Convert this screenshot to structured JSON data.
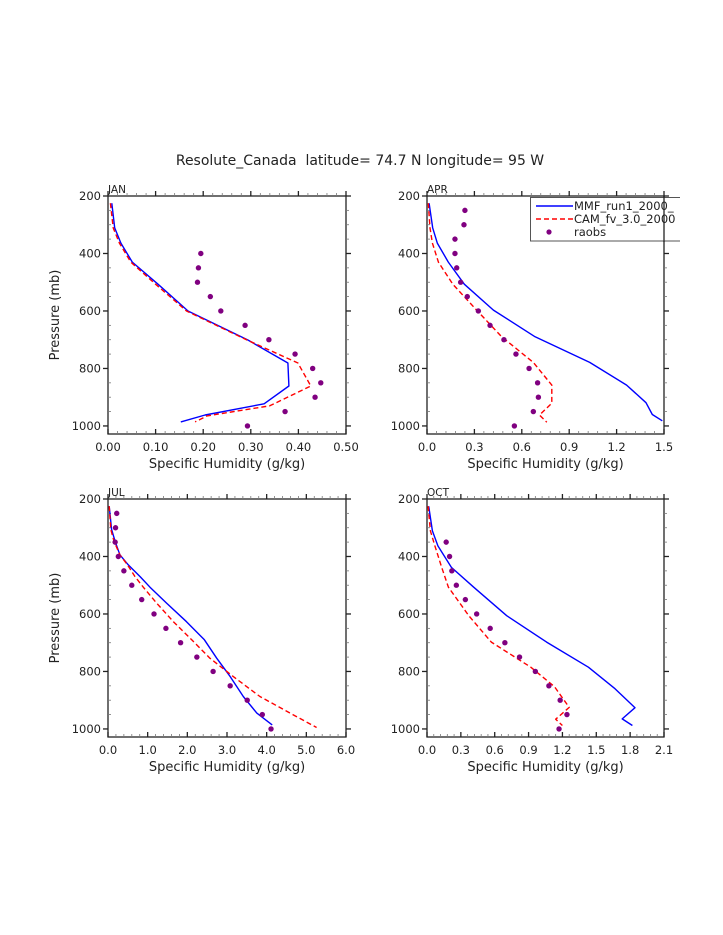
{
  "figure": {
    "title": "Resolute_Canada  latitude= 74.7 N longitude= 95 W"
  },
  "legend": {
    "placement": "top-right of APR panel",
    "entries": [
      {
        "label": "MMF_run1_2000_",
        "style": "solid line",
        "color": "#0000ff"
      },
      {
        "label": "CAM_fv_3.0_2000",
        "style": "dashed line",
        "color": "#ff0000"
      },
      {
        "label": "raobs",
        "style": "marker",
        "color": "#800080"
      }
    ]
  },
  "chart_data": [
    {
      "type": "line",
      "panel": "JAN",
      "title": "JAN",
      "xlabel": "Specific Humidity (g/kg)",
      "ylabel": "Pressure (mb)",
      "xlim": [
        0,
        0.5
      ],
      "ylim": [
        200,
        1028
      ],
      "y_inverted": true,
      "xticks": [
        "0.00",
        "0.10",
        "0.20",
        "0.30",
        "0.40",
        "0.50"
      ],
      "xtick_values": [
        0,
        0.1,
        0.2,
        0.3,
        0.4,
        0.5
      ],
      "yticks": [
        "200",
        "400",
        "600",
        "800",
        "1000"
      ],
      "ytick_values": [
        200,
        400,
        600,
        800,
        1000
      ],
      "series": [
        {
          "name": "MMF_run1_2000_",
          "kind": "line",
          "color": "#0000ff",
          "points": [
            [
              0.008,
              225
            ],
            [
              0.014,
              311
            ],
            [
              0.027,
              364
            ],
            [
              0.051,
              430
            ],
            [
              0.105,
              507
            ],
            [
              0.168,
              600
            ],
            [
              0.294,
              701
            ],
            [
              0.378,
              781
            ],
            [
              0.38,
              861
            ],
            [
              0.328,
              923
            ],
            [
              0.204,
              962
            ],
            [
              0.153,
              986
            ]
          ]
        },
        {
          "name": "CAM_fv_3.0_2000",
          "kind": "dashed",
          "color": "#ff0000",
          "points": [
            [
              0.005,
              225
            ],
            [
              0.011,
              311
            ],
            [
              0.024,
              364
            ],
            [
              0.048,
              430
            ],
            [
              0.1,
              507
            ],
            [
              0.165,
              600
            ],
            [
              0.292,
              701
            ],
            [
              0.399,
              781
            ],
            [
              0.426,
              861
            ],
            [
              0.34,
              930
            ],
            [
              0.208,
              965
            ],
            [
              0.183,
              986
            ]
          ]
        },
        {
          "name": "raobs",
          "kind": "marker",
          "color": "#800080",
          "points": [
            [
              0.195,
              400
            ],
            [
              0.19,
              450
            ],
            [
              0.188,
              500
            ],
            [
              0.215,
              550
            ],
            [
              0.237,
              600
            ],
            [
              0.288,
              650
            ],
            [
              0.338,
              700
            ],
            [
              0.393,
              750
            ],
            [
              0.43,
              800
            ],
            [
              0.447,
              850
            ],
            [
              0.435,
              900
            ],
            [
              0.372,
              950
            ],
            [
              0.293,
              1000
            ]
          ]
        }
      ]
    },
    {
      "type": "line",
      "panel": "APR",
      "title": "APR",
      "xlabel": "Specific Humidity (g/kg)",
      "ylabel": "",
      "xlim": [
        0,
        1.5
      ],
      "ylim": [
        200,
        1028
      ],
      "y_inverted": true,
      "xticks": [
        "0.0",
        "0.3",
        "0.6",
        "0.9",
        "1.2",
        "1.5"
      ],
      "xtick_values": [
        0,
        0.3,
        0.6,
        0.9,
        1.2,
        1.5
      ],
      "yticks": [
        "200",
        "400",
        "600",
        "800",
        "1000"
      ],
      "ytick_values": [
        200,
        400,
        600,
        800,
        1000
      ],
      "series": [
        {
          "name": "MMF_run1_2000_",
          "kind": "line",
          "color": "#0000ff",
          "points": [
            [
              0.013,
              225
            ],
            [
              0.036,
              311
            ],
            [
              0.065,
              364
            ],
            [
              0.135,
              430
            ],
            [
              0.236,
              507
            ],
            [
              0.42,
              597
            ],
            [
              0.684,
              690
            ],
            [
              1.03,
              779
            ],
            [
              1.263,
              858
            ],
            [
              1.386,
              919
            ],
            [
              1.426,
              960
            ],
            [
              1.489,
              982
            ]
          ]
        },
        {
          "name": "CAM_fv_3.0_2000",
          "kind": "dashed",
          "color": "#ff0000",
          "points": [
            [
              0.008,
              225
            ],
            [
              0.019,
              311
            ],
            [
              0.034,
              364
            ],
            [
              0.072,
              430
            ],
            [
              0.163,
              507
            ],
            [
              0.314,
              597
            ],
            [
              0.473,
              690
            ],
            [
              0.673,
              779
            ],
            [
              0.79,
              858
            ],
            [
              0.79,
              921
            ],
            [
              0.712,
              962
            ],
            [
              0.758,
              987
            ]
          ]
        },
        {
          "name": "raobs",
          "kind": "marker",
          "color": "#800080",
          "points": [
            [
              0.24,
              250
            ],
            [
              0.234,
              300
            ],
            [
              0.177,
              350
            ],
            [
              0.177,
              400
            ],
            [
              0.188,
              450
            ],
            [
              0.213,
              500
            ],
            [
              0.255,
              550
            ],
            [
              0.325,
              600
            ],
            [
              0.399,
              650
            ],
            [
              0.487,
              700
            ],
            [
              0.563,
              750
            ],
            [
              0.646,
              800
            ],
            [
              0.7,
              850
            ],
            [
              0.705,
              900
            ],
            [
              0.673,
              950
            ],
            [
              0.553,
              1000
            ]
          ]
        }
      ]
    },
    {
      "type": "line",
      "panel": "JUL",
      "title": "JUL",
      "xlabel": "Specific Humidity (g/kg)",
      "ylabel": "Pressure (mb)",
      "xlim": [
        0,
        6.0
      ],
      "ylim": [
        200,
        1028
      ],
      "y_inverted": true,
      "xticks": [
        "0.0",
        "1.0",
        "2.0",
        "3.0",
        "4.0",
        "5.0",
        "6.0"
      ],
      "xtick_values": [
        0,
        1,
        2,
        3,
        4,
        5,
        6
      ],
      "yticks": [
        "200",
        "400",
        "600",
        "800",
        "1000"
      ],
      "ytick_values": [
        200,
        400,
        600,
        800,
        1000
      ],
      "series": [
        {
          "name": "MMF_run1_2000_",
          "kind": "line",
          "color": "#0000ff",
          "points": [
            [
              0.03,
              225
            ],
            [
              0.09,
              306
            ],
            [
              0.18,
              347
            ],
            [
              0.3,
              394
            ],
            [
              0.51,
              429
            ],
            [
              0.81,
              470
            ],
            [
              1.06,
              507
            ],
            [
              1.48,
              563
            ],
            [
              1.98,
              627
            ],
            [
              2.43,
              690
            ],
            [
              2.74,
              754
            ],
            [
              3.08,
              818
            ],
            [
              3.41,
              887
            ],
            [
              3.75,
              945
            ],
            [
              4.14,
              986
            ]
          ]
        },
        {
          "name": "CAM_fv_3.0_2000",
          "kind": "dashed",
          "color": "#ff0000",
          "points": [
            [
              0.03,
              225
            ],
            [
              0.07,
              306
            ],
            [
              0.15,
              347
            ],
            [
              0.3,
              394
            ],
            [
              0.49,
              429
            ],
            [
              0.68,
              470
            ],
            [
              0.89,
              507
            ],
            [
              1.23,
              563
            ],
            [
              1.65,
              627
            ],
            [
              2.11,
              690
            ],
            [
              2.57,
              754
            ],
            [
              3.16,
              818
            ],
            [
              3.83,
              887
            ],
            [
              4.59,
              945
            ],
            [
              5.26,
              995
            ]
          ]
        },
        {
          "name": "raobs",
          "kind": "marker",
          "color": "#800080",
          "points": [
            [
              0.22,
              250
            ],
            [
              0.19,
              300
            ],
            [
              0.18,
              350
            ],
            [
              0.26,
              400
            ],
            [
              0.4,
              450
            ],
            [
              0.6,
              500
            ],
            [
              0.85,
              550
            ],
            [
              1.16,
              600
            ],
            [
              1.46,
              650
            ],
            [
              1.83,
              700
            ],
            [
              2.24,
              750
            ],
            [
              2.65,
              800
            ],
            [
              3.08,
              850
            ],
            [
              3.51,
              900
            ],
            [
              3.89,
              950
            ],
            [
              4.11,
              1000
            ]
          ]
        }
      ]
    },
    {
      "type": "line",
      "panel": "OCT",
      "title": "OCT",
      "xlabel": "Specific Humidity (g/kg)",
      "ylabel": "",
      "xlim": [
        0,
        2.1
      ],
      "ylim": [
        200,
        1028
      ],
      "y_inverted": true,
      "xticks": [
        "0.0",
        "0.3",
        "0.6",
        "0.9",
        "1.2",
        "1.5",
        "1.8",
        "2.1"
      ],
      "xtick_values": [
        0,
        0.3,
        0.6,
        0.9,
        1.2,
        1.5,
        1.8,
        2.1
      ],
      "yticks": [
        "200",
        "400",
        "600",
        "800",
        "1000"
      ],
      "ytick_values": [
        200,
        400,
        600,
        800,
        1000
      ],
      "series": [
        {
          "name": "MMF_run1_2000_",
          "kind": "line",
          "color": "#0000ff",
          "points": [
            [
              0.015,
              225
            ],
            [
              0.048,
              311
            ],
            [
              0.097,
              363
            ],
            [
              0.216,
              438
            ],
            [
              0.414,
              507
            ],
            [
              0.706,
              606
            ],
            [
              1.06,
              698
            ],
            [
              1.43,
              785
            ],
            [
              1.666,
              860
            ],
            [
              1.843,
              926
            ],
            [
              1.73,
              965
            ],
            [
              1.82,
              988
            ]
          ]
        },
        {
          "name": "CAM_fv_3.0_2000",
          "kind": "dashed",
          "color": "#ff0000",
          "points": [
            [
              0.01,
              225
            ],
            [
              0.03,
              311
            ],
            [
              0.07,
              363
            ],
            [
              0.13,
              438
            ],
            [
              0.19,
              507
            ],
            [
              0.37,
              606
            ],
            [
              0.57,
              698
            ],
            [
              0.92,
              785
            ],
            [
              1.13,
              853
            ],
            [
              1.26,
              925
            ],
            [
              1.14,
              966
            ],
            [
              1.2,
              988
            ]
          ]
        },
        {
          "name": "raobs",
          "kind": "marker",
          "color": "#800080",
          "points": [
            [
              0.17,
              350
            ],
            [
              0.2,
              400
            ],
            [
              0.22,
              450
            ],
            [
              0.26,
              500
            ],
            [
              0.34,
              550
            ],
            [
              0.44,
              600
            ],
            [
              0.56,
              650
            ],
            [
              0.69,
              700
            ],
            [
              0.82,
              750
            ],
            [
              0.96,
              800
            ],
            [
              1.08,
              850
            ],
            [
              1.18,
              900
            ],
            [
              1.24,
              950
            ],
            [
              1.17,
              1000
            ]
          ]
        }
      ]
    }
  ]
}
